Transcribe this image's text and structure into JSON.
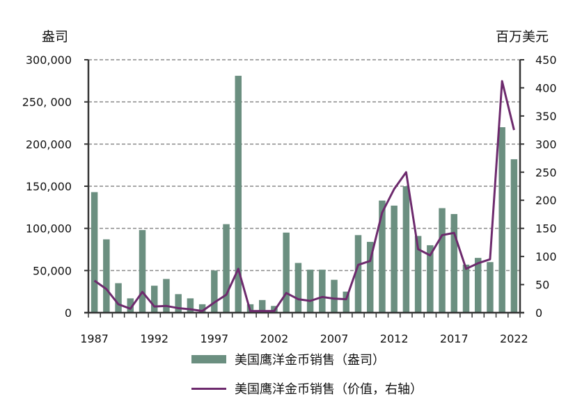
{
  "chart_data": {
    "type": "bar+line",
    "title": "",
    "left_axis_title": "盎司",
    "right_axis_title": "百万美元",
    "xlabel": "",
    "categories": [
      1987,
      1988,
      1989,
      1990,
      1991,
      1992,
      1993,
      1994,
      1995,
      1996,
      1997,
      1998,
      1999,
      2000,
      2001,
      2002,
      2003,
      2004,
      2005,
      2006,
      2007,
      2008,
      2009,
      2010,
      2011,
      2012,
      2013,
      2014,
      2015,
      2016,
      2017,
      2018,
      2019,
      2020,
      2021,
      2022
    ],
    "x_tick_labels": [
      "1987",
      "1992",
      "1997",
      "2002",
      "2007",
      "2012",
      "2017",
      "2022"
    ],
    "left_ticks": [
      "0",
      "50,000",
      "100,000",
      "150,000",
      "200,000",
      "250, 000",
      "300,000"
    ],
    "left_ylim": [
      0,
      300000
    ],
    "right_ticks": [
      "0",
      "50",
      "100",
      "150",
      "200",
      "250",
      "300",
      "350",
      "400",
      "450"
    ],
    "right_ylim": [
      0,
      450
    ],
    "grid": "dashed horizontal at left-axis ticks",
    "series": [
      {
        "name": "美国鹰洋金币销售（盎司）",
        "type": "bar",
        "axis": "left",
        "color": "#6b8f80",
        "values": [
          143000,
          87000,
          35000,
          17000,
          98000,
          32000,
          40000,
          22000,
          17000,
          10000,
          50000,
          105000,
          281000,
          10000,
          15000,
          8000,
          95000,
          59000,
          51000,
          51000,
          39000,
          25000,
          92000,
          84000,
          133000,
          127000,
          150000,
          91000,
          80000,
          124000,
          117000,
          57000,
          65000,
          60000,
          220000,
          182000
        ]
      },
      {
        "name": "美国鹰洋金币销售（价值，右轴）",
        "type": "line",
        "axis": "right",
        "color": "#6d2a6d",
        "values": [
          57,
          42,
          15,
          7,
          37,
          11,
          12,
          8,
          6,
          3,
          18,
          32,
          78,
          3,
          3,
          3,
          35,
          24,
          21,
          28,
          25,
          24,
          85,
          92,
          178,
          220,
          250,
          113,
          102,
          138,
          142,
          78,
          88,
          95,
          412,
          325
        ]
      }
    ],
    "legend_position": "bottom"
  },
  "legend": {
    "bar_label": "美国鹰洋金币销售（盎司）",
    "line_label": "美国鹰洋金币销售（价值，右轴）"
  }
}
